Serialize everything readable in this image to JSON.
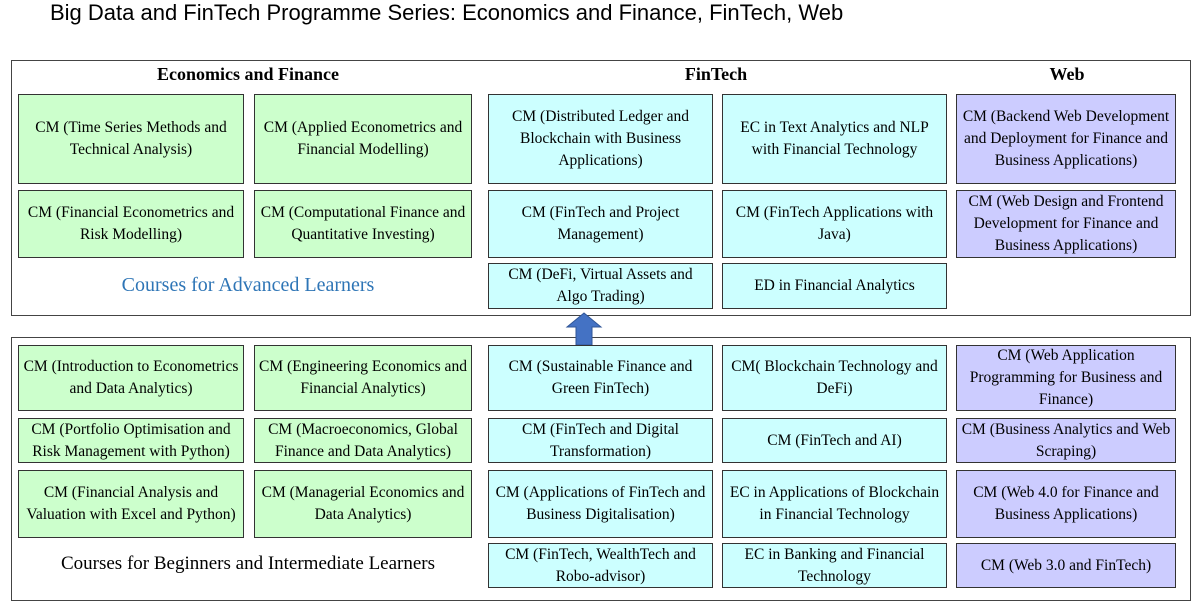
{
  "title": "Big Data and FinTech Programme Series: Economics and Finance, FinTech, Web",
  "headers": [
    "Economics and Finance",
    "FinTech",
    "Web"
  ],
  "colors": {
    "economics": "#ccffcc",
    "fintech": "#ccffff",
    "web": "#ccccff",
    "advanced_label": "#2e75b6",
    "arrow": "#4472c4"
  },
  "advanced": {
    "label": "Courses for Advanced Learners",
    "courses": [
      "CM (Time Series Methods and Technical Analysis)",
      "CM (Applied Econometrics and Financial Modelling)",
      "CM (Financial Econometrics and Risk Modelling)",
      "CM (Computational Finance and Quantitative Investing)",
      "CM (Distributed Ledger and Blockchain with Business Applications)",
      "EC in Text Analytics and NLP with Financial Technology",
      "CM (FinTech and Project Management)",
      "CM (FinTech Applications with Java)",
      "CM (DeFi, Virtual Assets and Algo Trading)",
      "ED in Financial Analytics",
      "CM (Backend Web Development and Deployment for Finance and Business Applications)",
      "CM (Web Design and Frontend Development for Finance and Business Applications)"
    ]
  },
  "beginner": {
    "label": "Courses for Beginners and Intermediate Learners",
    "courses": [
      "CM (Introduction to Econometrics and Data Analytics)",
      "CM (Engineering Economics and Financial Analytics)",
      "CM (Portfolio Optimisation and Risk Management with Python)",
      "CM (Macroeconomics, Global Finance and Data Analytics)",
      "CM (Financial Analysis and Valuation with Excel and Python)",
      "CM (Managerial Economics and Data Analytics)",
      "CM (Sustainable Finance and Green FinTech)",
      "CM( Blockchain Technology and DeFi)",
      "CM (FinTech and Digital Transformation)",
      "CM (FinTech and AI)",
      "CM (Applications of FinTech and Business Digitalisation)",
      "EC in Applications of Blockchain in Financial Technology",
      "CM (FinTech, WealthTech and Robo-advisor)",
      "EC in Banking and Financial Technology",
      "CM (Web Application Programming for Business and Finance)",
      "CM (Business Analytics and Web Scraping)",
      "CM (Web 4.0 for Finance and Business Applications)",
      "CM (Web 3.0 and FinTech)"
    ]
  }
}
